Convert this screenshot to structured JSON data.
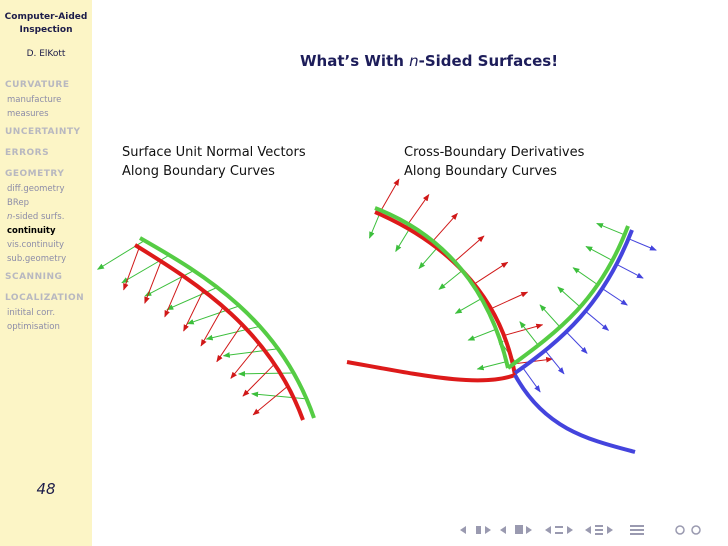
{
  "sidebar": {
    "title": [
      "Computer-Aided",
      "Inspection"
    ],
    "author": "D. ElKott",
    "sections": [
      {
        "name": "CURVATURE",
        "items": [
          "manufacture",
          "measures"
        ]
      },
      {
        "name": "UNCERTAINTY",
        "items": []
      },
      {
        "name": "ERRORS",
        "items": []
      },
      {
        "name": "GEOMETRY",
        "items": [
          "diff.geometry",
          "BRep",
          {
            "italic": "n",
            "rest": "-sided surfs."
          },
          "continuity",
          "vis.continuity",
          "sub.geometry"
        ]
      },
      {
        "name": "SCANNING",
        "items": []
      },
      {
        "name": "LOCALIZATION",
        "items": [
          "initital corr.",
          "optimisation"
        ]
      }
    ],
    "page_number": "48"
  },
  "slide": {
    "title": [
      "What’s With ",
      "n",
      "-Sided Surfaces!"
    ],
    "captions": [
      [
        "Surface Unit Normal Vectors",
        "Along Boundary Curves"
      ],
      [
        "Cross-Boundary Derivatives",
        "Along Boundary Curves"
      ]
    ]
  }
}
